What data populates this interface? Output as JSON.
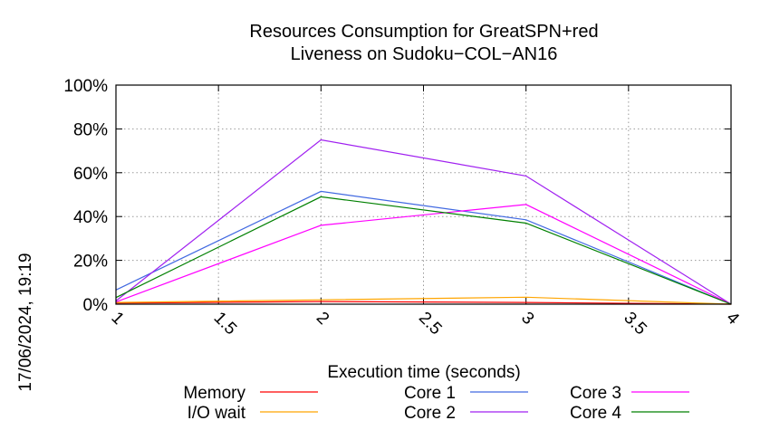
{
  "chart_data": {
    "type": "line",
    "title": [
      "Resources Consumption for GreatSPN+red",
      "Liveness on Sudoku−COL−AN16"
    ],
    "xlabel": "Execution time (seconds)",
    "ylabel": "",
    "side_label": "17/06/2024, 19:19",
    "xlim": [
      1,
      4
    ],
    "ylim": [
      0,
      100
    ],
    "x_ticks": [
      1,
      1.5,
      2,
      2.5,
      3,
      3.5,
      4
    ],
    "x_tick_labels": [
      "1",
      "1.5",
      "2",
      "2.5",
      "3",
      "3.5",
      "4"
    ],
    "y_ticks": [
      0,
      20,
      40,
      60,
      80,
      100
    ],
    "y_tick_labels": [
      "0%",
      "20%",
      "40%",
      "60%",
      "80%",
      "100%"
    ],
    "grid": true,
    "legend_position": "bottom",
    "series": [
      {
        "name": "Memory",
        "color": "#ff0000",
        "x": [
          1,
          2,
          3,
          4
        ],
        "values": [
          0.5,
          1.2,
          0.8,
          0.0
        ]
      },
      {
        "name": "I/O wait",
        "color": "#ffa500",
        "x": [
          1,
          2,
          3,
          4
        ],
        "values": [
          0.8,
          2.0,
          3.2,
          0.0
        ]
      },
      {
        "name": "Core 1",
        "color": "#4169e1",
        "x": [
          1,
          2,
          3,
          4
        ],
        "values": [
          6.5,
          51.5,
          38.5,
          0.0
        ]
      },
      {
        "name": "Core 2",
        "color": "#a020f0",
        "x": [
          1,
          2,
          3,
          4
        ],
        "values": [
          1.5,
          75.0,
          58.5,
          0.0
        ]
      },
      {
        "name": "Core 3",
        "color": "#ff00ff",
        "x": [
          1,
          2,
          3,
          4
        ],
        "values": [
          1.0,
          36.0,
          45.5,
          0.0
        ]
      },
      {
        "name": "Core 4",
        "color": "#008000",
        "x": [
          1,
          2,
          3,
          4
        ],
        "values": [
          3.0,
          49.0,
          37.0,
          0.0
        ]
      }
    ]
  }
}
